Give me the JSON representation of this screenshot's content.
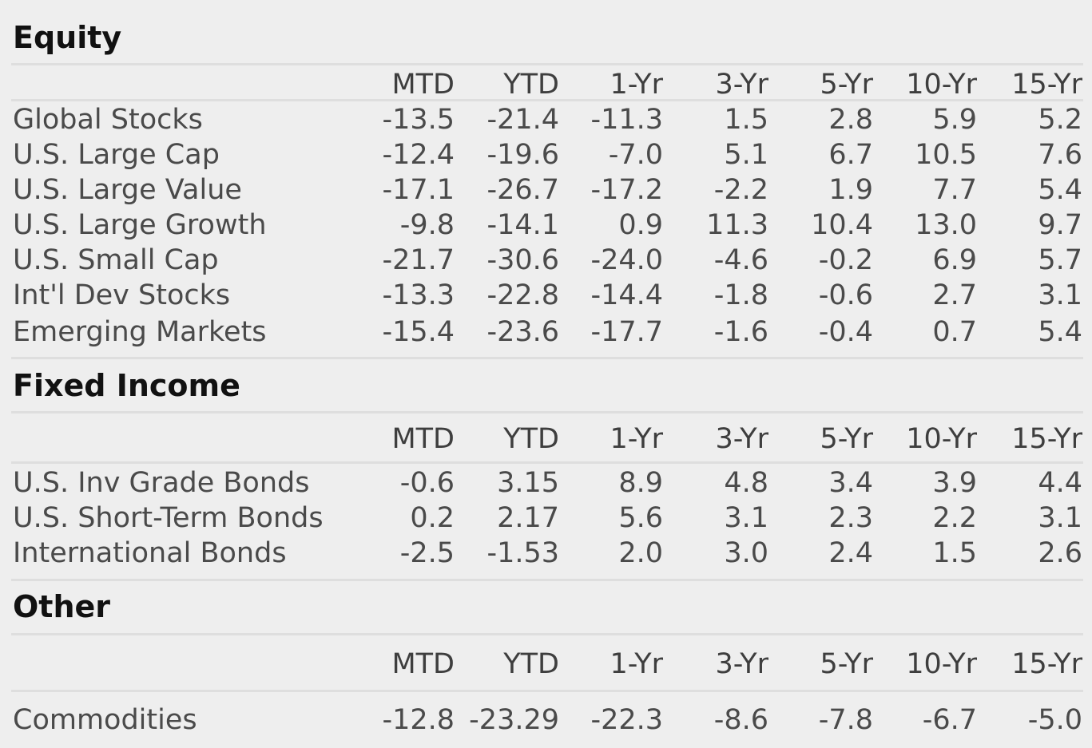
{
  "sections": [
    {
      "title": "Equity",
      "headers": [
        "MTD",
        "YTD",
        "1-Yr",
        "3-Yr",
        "5-Yr",
        "10-Yr",
        "15-Yr"
      ],
      "rows": [
        {
          "label": "Global Stocks",
          "values": [
            "-13.5",
            "-21.4",
            "-11.3",
            "1.5",
            "2.8",
            "5.9",
            "5.2"
          ]
        },
        {
          "label": "U.S. Large Cap",
          "values": [
            "-12.4",
            "-19.6",
            "-7.0",
            "5.1",
            "6.7",
            "10.5",
            "7.6"
          ]
        },
        {
          "label": "U.S. Large Value",
          "values": [
            "-17.1",
            "-26.7",
            "-17.2",
            "-2.2",
            "1.9",
            "7.7",
            "5.4"
          ]
        },
        {
          "label": "U.S. Large Growth",
          "values": [
            "-9.8",
            "-14.1",
            "0.9",
            "11.3",
            "10.4",
            "13.0",
            "9.7"
          ]
        },
        {
          "label": "U.S. Small Cap",
          "values": [
            "-21.7",
            "-30.6",
            "-24.0",
            "-4.6",
            "-0.2",
            "6.9",
            "5.7"
          ]
        },
        {
          "label": "Int'l Dev Stocks",
          "values": [
            "-13.3",
            "-22.8",
            "-14.4",
            "-1.8",
            "-0.6",
            "2.7",
            "3.1"
          ]
        },
        {
          "label": "Emerging Markets",
          "values": [
            "-15.4",
            "-23.6",
            "-17.7",
            "-1.6",
            "-0.4",
            "0.7",
            "5.4"
          ]
        }
      ]
    },
    {
      "title": "Fixed Income",
      "headers": [
        "MTD",
        "YTD",
        "1-Yr",
        "3-Yr",
        "5-Yr",
        "10-Yr",
        "15-Yr"
      ],
      "rows": [
        {
          "label": "U.S. Inv Grade Bonds",
          "values": [
            "-0.6",
            "3.15",
            "8.9",
            "4.8",
            "3.4",
            "3.9",
            "4.4"
          ]
        },
        {
          "label": "U.S. Short-Term Bonds",
          "values": [
            "0.2",
            "2.17",
            "5.6",
            "3.1",
            "2.3",
            "2.2",
            "3.1"
          ]
        },
        {
          "label": "International Bonds",
          "values": [
            "-2.5",
            "-1.53",
            "2.0",
            "3.0",
            "2.4",
            "1.5",
            "2.6"
          ]
        }
      ]
    },
    {
      "title": "Other",
      "headers": [
        "MTD",
        "YTD",
        "1-Yr",
        "3-Yr",
        "5-Yr",
        "10-Yr",
        "15-Yr"
      ],
      "rows": [
        {
          "label": "Commodities",
          "values": [
            "-12.8",
            "-23.29",
            "-22.3",
            "-8.6",
            "-7.8",
            "-6.7",
            "-5.0"
          ]
        }
      ]
    }
  ]
}
